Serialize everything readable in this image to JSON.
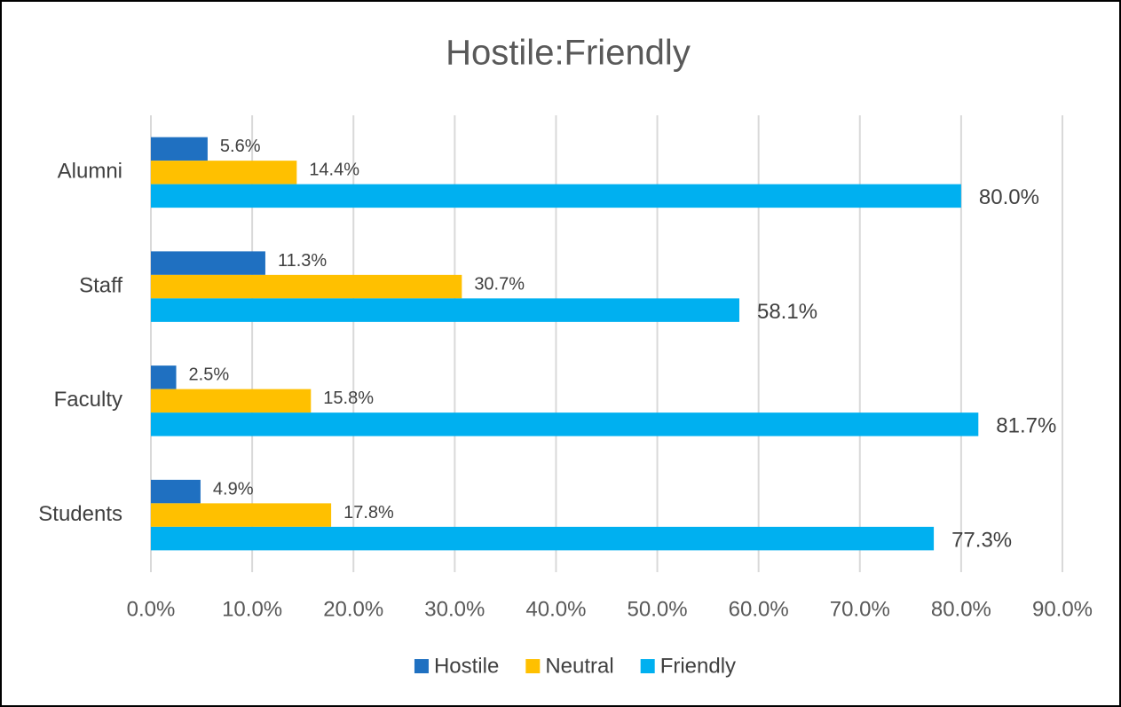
{
  "chart_data": {
    "type": "bar",
    "orientation": "horizontal",
    "title": "Hostile:Friendly",
    "categories": [
      "Alumni",
      "Staff",
      "Faculty",
      "Students"
    ],
    "series": [
      {
        "name": "Hostile",
        "color": "#1f70c1",
        "values": [
          5.6,
          11.3,
          2.5,
          4.9
        ],
        "value_labels": [
          "5.6%",
          "11.3%",
          "2.5%",
          "4.9%"
        ]
      },
      {
        "name": "Neutral",
        "color": "#ffc000",
        "values": [
          14.4,
          30.7,
          15.8,
          17.8
        ],
        "value_labels": [
          "14.4%",
          "30.7%",
          "15.8%",
          "17.8%"
        ]
      },
      {
        "name": "Friendly",
        "color": "#00b0f0",
        "values": [
          80.0,
          58.1,
          81.7,
          77.3
        ],
        "value_labels": [
          "80.0%",
          "58.1%",
          "81.7%",
          "77.3%"
        ]
      }
    ],
    "xlim": [
      0,
      90
    ],
    "xticks": [
      {
        "value": 0,
        "label": "0.0%"
      },
      {
        "value": 10,
        "label": "10.0%"
      },
      {
        "value": 20,
        "label": "20.0%"
      },
      {
        "value": 30,
        "label": "30.0%"
      },
      {
        "value": 40,
        "label": "40.0%"
      },
      {
        "value": 50,
        "label": "50.0%"
      },
      {
        "value": 60,
        "label": "60.0%"
      },
      {
        "value": 70,
        "label": "70.0%"
      },
      {
        "value": 80,
        "label": "80.0%"
      },
      {
        "value": 90,
        "label": "90.0%"
      }
    ],
    "grid": true,
    "legend": "bottom"
  }
}
